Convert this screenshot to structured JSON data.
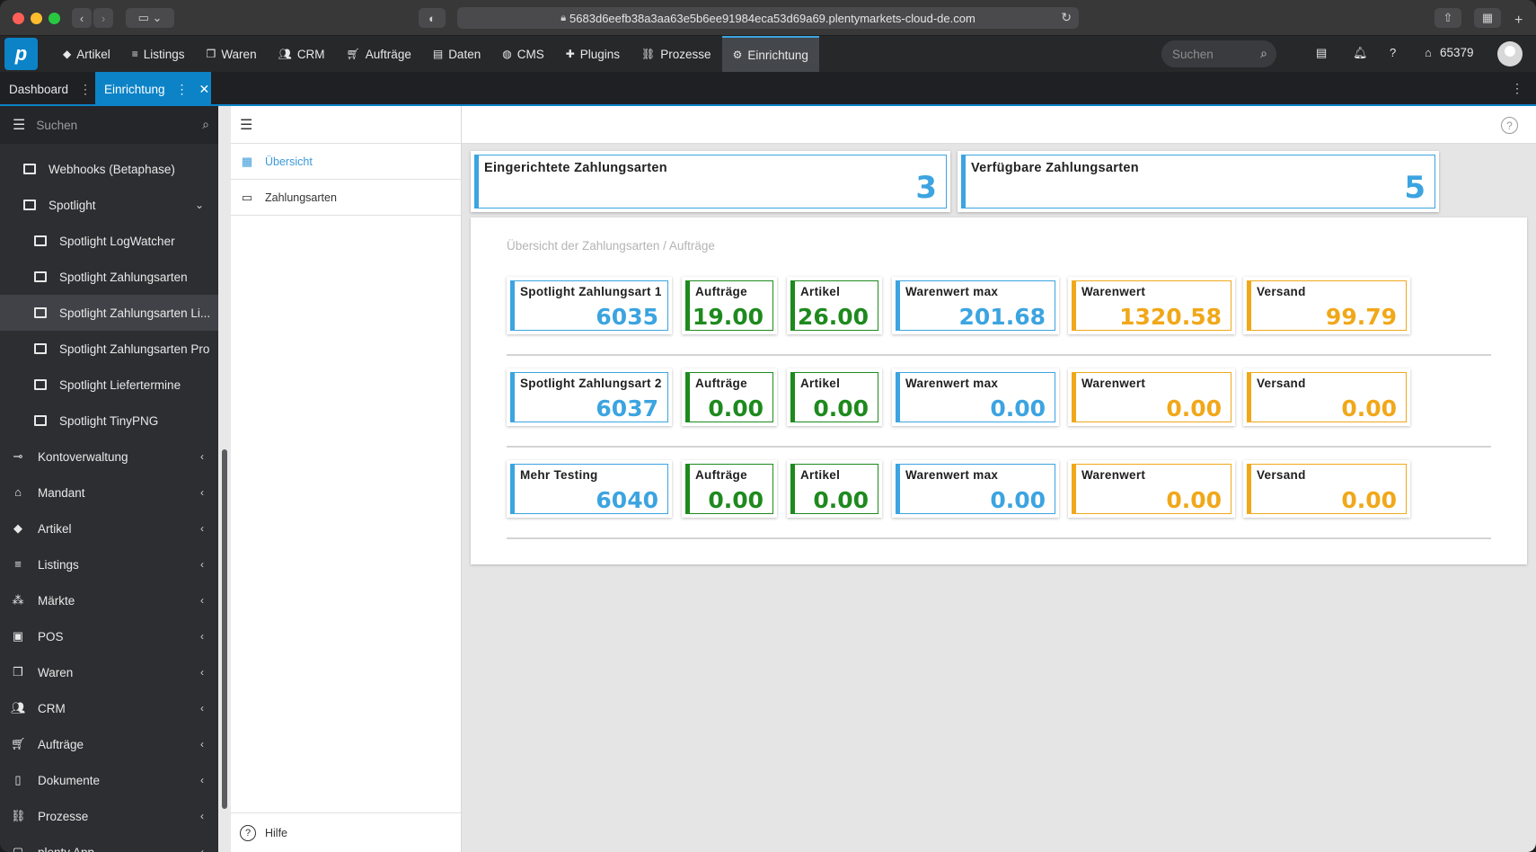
{
  "browser": {
    "url": "5683d6eefb38a3aa63e5b6ee91984eca53d69a69.plentymarkets-cloud-de.com"
  },
  "topnav": {
    "items": [
      {
        "label": "Artikel",
        "icon": "tag-icon"
      },
      {
        "label": "Listings",
        "icon": "listings-icon"
      },
      {
        "label": "Waren",
        "icon": "boxes-icon"
      },
      {
        "label": "CRM",
        "icon": "people-icon"
      },
      {
        "label": "Aufträge",
        "icon": "cart-icon"
      },
      {
        "label": "Daten",
        "icon": "database-icon"
      },
      {
        "label": "CMS",
        "icon": "globe-icon"
      },
      {
        "label": "Plugins",
        "icon": "puzzle-icon"
      },
      {
        "label": "Prozesse",
        "icon": "process-icon"
      },
      {
        "label": "Einrichtung",
        "icon": "gear-icon"
      }
    ],
    "search_placeholder": "Suchen",
    "user_id": "65379"
  },
  "tabs": {
    "dashboard": "Dashboard",
    "einrichtung": "Einrichtung"
  },
  "sidebar": {
    "search_placeholder": "Suchen",
    "items": [
      {
        "label": "Webhooks (Betaphase)"
      },
      {
        "label": "Spotlight"
      },
      {
        "label": "Spotlight LogWatcher"
      },
      {
        "label": "Spotlight Zahlungsarten"
      },
      {
        "label": "Spotlight Zahlungsarten Li..."
      },
      {
        "label": "Spotlight Zahlungsarten Pro"
      },
      {
        "label": "Spotlight Liefertermine"
      },
      {
        "label": "Spotlight TinyPNG"
      },
      {
        "label": "Kontoverwaltung"
      },
      {
        "label": "Mandant"
      },
      {
        "label": "Artikel"
      },
      {
        "label": "Listings"
      },
      {
        "label": "Märkte"
      },
      {
        "label": "POS"
      },
      {
        "label": "Waren"
      },
      {
        "label": "CRM"
      },
      {
        "label": "Aufträge"
      },
      {
        "label": "Dokumente"
      },
      {
        "label": "Prozesse"
      },
      {
        "label": "plenty App"
      }
    ]
  },
  "submenu": {
    "overview": "Übersicht",
    "payment_methods": "Zahlungsarten",
    "help": "Hilfe"
  },
  "kpis": [
    {
      "title": "Eingerichtete Zahlungsarten",
      "value": "3"
    },
    {
      "title": "Verfügbare Zahlungsarten",
      "value": "5"
    }
  ],
  "panel": {
    "title": "Übersicht der Zahlungsarten / Aufträge",
    "colors": {
      "blue": "#3ca4e0",
      "green": "#1e8a1e",
      "orange": "#f0a81a"
    },
    "groups": [
      {
        "cards": [
          {
            "title": "Spotlight Zahlungsart 1",
            "value": "6035"
          },
          {
            "title": "Aufträge",
            "value": "19.00"
          },
          {
            "title": "Artikel",
            "value": "26.00"
          },
          {
            "title": "Warenwert max",
            "value": "201.68"
          },
          {
            "title": "Warenwert",
            "value": "1320.58"
          },
          {
            "title": "Versand",
            "value": "99.79"
          }
        ]
      },
      {
        "cards": [
          {
            "title": "Spotlight Zahlungsart 2",
            "value": "6037"
          },
          {
            "title": "Aufträge",
            "value": "0.00"
          },
          {
            "title": "Artikel",
            "value": "0.00"
          },
          {
            "title": "Warenwert max",
            "value": "0.00"
          },
          {
            "title": "Warenwert",
            "value": "0.00"
          },
          {
            "title": "Versand",
            "value": "0.00"
          }
        ]
      },
      {
        "cards": [
          {
            "title": "Mehr Testing",
            "value": "6040"
          },
          {
            "title": "Aufträge",
            "value": "0.00"
          },
          {
            "title": "Artikel",
            "value": "0.00"
          },
          {
            "title": "Warenwert max",
            "value": "0.00"
          },
          {
            "title": "Warenwert",
            "value": "0.00"
          },
          {
            "title": "Versand",
            "value": "0.00"
          }
        ]
      }
    ]
  }
}
